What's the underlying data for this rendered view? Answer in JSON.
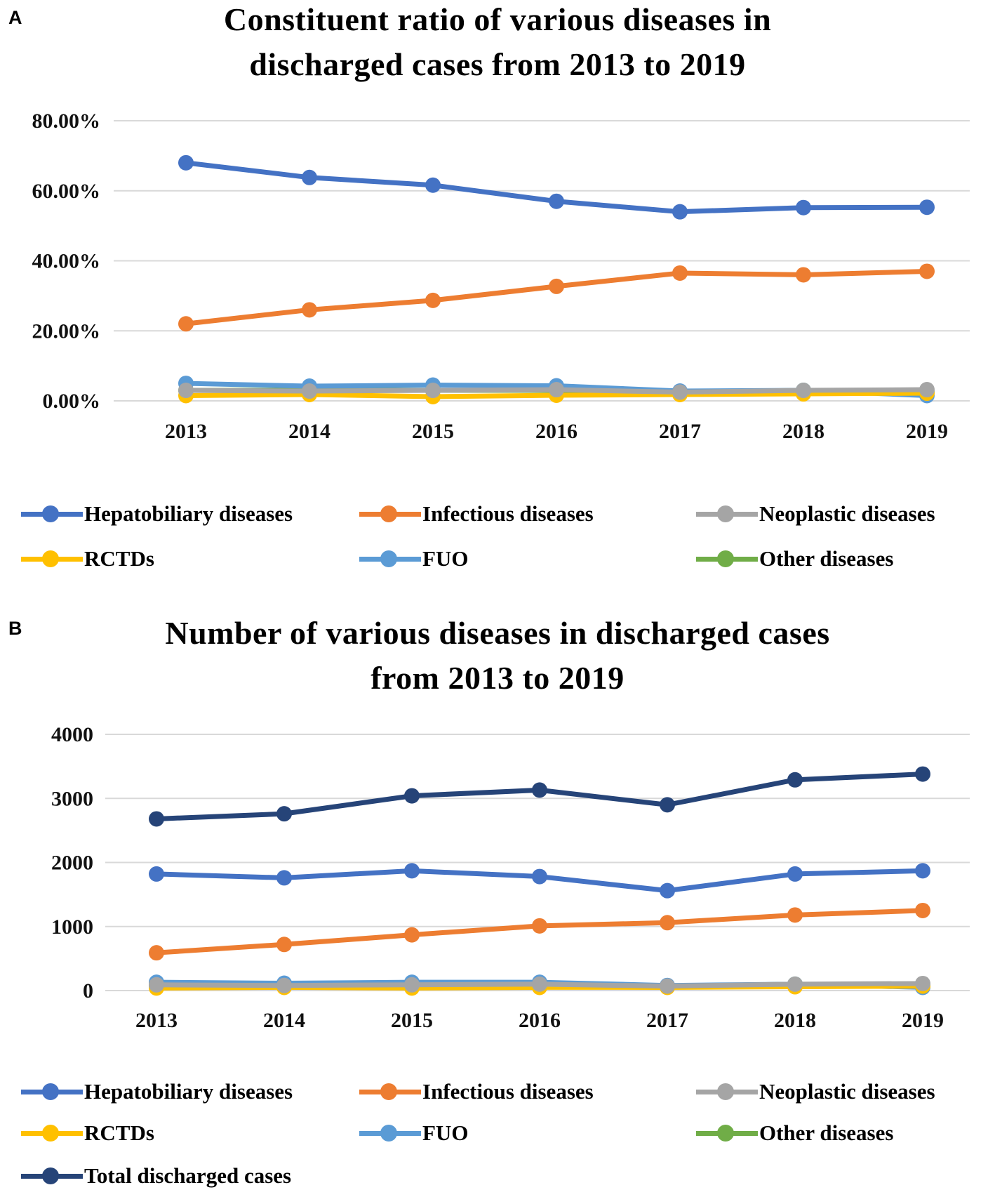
{
  "panels": [
    {
      "letter": "A",
      "title_lines": [
        "Constituent ratio of various diseases in",
        "discharged cases from 2013 to 2019"
      ]
    },
    {
      "letter": "B",
      "title_lines": [
        "Number of various diseases in discharged cases",
        "from 2013 to 2019"
      ]
    }
  ],
  "colors": {
    "hepatobiliary": "#4472C4",
    "infectious": "#ED7D31",
    "neoplastic": "#A5A5A5",
    "rctds": "#FFC000",
    "fuo": "#5B9BD5",
    "other": "#70AD47",
    "total": "#264478",
    "grid": "#D9D9D9"
  },
  "chart_data": [
    {
      "type": "line",
      "title": "Constituent ratio of various diseases in discharged cases from 2013 to 2019",
      "xlabel": "",
      "ylabel": "",
      "categories": [
        "2013",
        "2014",
        "2015",
        "2016",
        "2017",
        "2018",
        "2019"
      ],
      "ylim": [
        0,
        0.8
      ],
      "yticks": [
        0,
        0.2,
        0.4,
        0.6,
        0.8
      ],
      "ytick_labels": [
        "0.00%",
        "20.00%",
        "40.00%",
        "60.00%",
        "80.00%"
      ],
      "legend_position": "bottom",
      "series": [
        {
          "name": "Hepatobiliary diseases",
          "color_key": "hepatobiliary",
          "values": [
            0.68,
            0.638,
            0.616,
            0.57,
            0.54,
            0.552,
            0.553
          ]
        },
        {
          "name": "Infectious diseases",
          "color_key": "infectious",
          "values": [
            0.22,
            0.26,
            0.287,
            0.327,
            0.365,
            0.36,
            0.37
          ]
        },
        {
          "name": "Neoplastic diseases",
          "color_key": "neoplastic",
          "values": [
            0.03,
            0.028,
            0.03,
            0.032,
            0.025,
            0.03,
            0.032
          ]
        },
        {
          "name": "RCTDs",
          "color_key": "rctds",
          "values": [
            0.015,
            0.018,
            0.012,
            0.016,
            0.018,
            0.02,
            0.022
          ]
        },
        {
          "name": "FUO",
          "color_key": "fuo",
          "values": [
            0.05,
            0.042,
            0.045,
            0.043,
            0.028,
            0.03,
            0.015
          ]
        },
        {
          "name": "Other diseases",
          "color_key": "other",
          "values": [
            0.03,
            0.03,
            0.03,
            0.03,
            0.025,
            0.03,
            0.025
          ]
        }
      ]
    },
    {
      "type": "line",
      "title": "Number of various diseases in discharged cases from 2013 to 2019",
      "xlabel": "",
      "ylabel": "",
      "categories": [
        "2013",
        "2014",
        "2015",
        "2016",
        "2017",
        "2018",
        "2019"
      ],
      "ylim": [
        0,
        4000
      ],
      "yticks": [
        0,
        1000,
        2000,
        3000,
        4000
      ],
      "ytick_labels": [
        "0",
        "1000",
        "2000",
        "3000",
        "4000"
      ],
      "legend_position": "bottom",
      "series": [
        {
          "name": "Hepatobiliary diseases",
          "color_key": "hepatobiliary",
          "values": [
            1820,
            1760,
            1870,
            1780,
            1560,
            1820,
            1870
          ]
        },
        {
          "name": "Infectious diseases",
          "color_key": "infectious",
          "values": [
            590,
            720,
            870,
            1010,
            1060,
            1180,
            1250
          ]
        },
        {
          "name": "Neoplastic diseases",
          "color_key": "neoplastic",
          "values": [
            90,
            80,
            90,
            100,
            70,
            100,
            110
          ]
        },
        {
          "name": "RCTDs",
          "color_key": "rctds",
          "values": [
            40,
            50,
            40,
            50,
            50,
            60,
            70
          ]
        },
        {
          "name": "FUO",
          "color_key": "fuo",
          "values": [
            130,
            115,
            130,
            130,
            80,
            100,
            50
          ]
        },
        {
          "name": "Other diseases",
          "color_key": "other",
          "values": [
            80,
            80,
            90,
            90,
            70,
            100,
            80
          ]
        },
        {
          "name": "Total discharged cases",
          "color_key": "total",
          "values": [
            2680,
            2760,
            3040,
            3130,
            2900,
            3290,
            3380
          ]
        }
      ]
    }
  ]
}
